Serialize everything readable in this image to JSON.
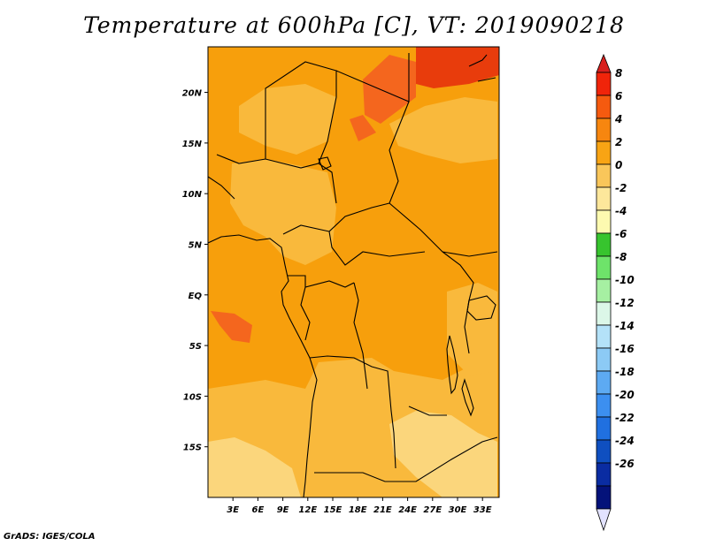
{
  "title": "Temperature at 600hPa [C], VT: 2019090218",
  "credit": "GrADS: IGES/COLA",
  "map": {
    "lat_labels": [
      {
        "lat": 20,
        "text": "20N"
      },
      {
        "lat": 15,
        "text": "15N"
      },
      {
        "lat": 10,
        "text": "10N"
      },
      {
        "lat": 5,
        "text": "5N"
      },
      {
        "lat": 0,
        "text": "EQ"
      },
      {
        "lat": -5,
        "text": "5S"
      },
      {
        "lat": -10,
        "text": "10S"
      },
      {
        "lat": -15,
        "text": "15S"
      }
    ],
    "lon_labels": [
      {
        "lon": 3,
        "text": "3E"
      },
      {
        "lon": 6,
        "text": "6E"
      },
      {
        "lon": 9,
        "text": "9E"
      },
      {
        "lon": 12,
        "text": "12E"
      },
      {
        "lon": 15,
        "text": "15E"
      },
      {
        "lon": 18,
        "text": "18E"
      },
      {
        "lon": 21,
        "text": "21E"
      },
      {
        "lon": 24,
        "text": "24E"
      },
      {
        "lon": 27,
        "text": "27E"
      },
      {
        "lon": 30,
        "text": "30E"
      },
      {
        "lon": 33,
        "text": "33E"
      }
    ],
    "lon_range": [
      0,
      35
    ],
    "lat_range": [
      -20,
      24.5
    ],
    "field_colors": {
      "warmest": "#e83c0c",
      "warm": "#f4661e",
      "main": "#f79f0c",
      "cool": "#f9b93c",
      "coolest": "#fbd67c"
    },
    "coastline_color": "#000000"
  },
  "colorbar": {
    "labels": [
      "8",
      "6",
      "4",
      "2",
      "0",
      "-2",
      "-4",
      "-6",
      "-8",
      "-10",
      "-12",
      "-14",
      "-16",
      "-18",
      "-20",
      "-22",
      "-24",
      "-26"
    ],
    "colors": [
      "#f0240a",
      "#f55a0f",
      "#f7860f",
      "#f8a414",
      "#f9c65a",
      "#fde79b",
      "#fdfab0",
      "#37c42e",
      "#6ee36a",
      "#a6f0a2",
      "#dcf7e8",
      "#b4e2f8",
      "#8ccaf5",
      "#5daaf2",
      "#3c8ff0",
      "#2070e0",
      "#0f4fc0",
      "#0a2ca2",
      "#04127a"
    ],
    "top_tip_color": "#d8201e",
    "bottom_tip_color": "#e2e2ff"
  }
}
